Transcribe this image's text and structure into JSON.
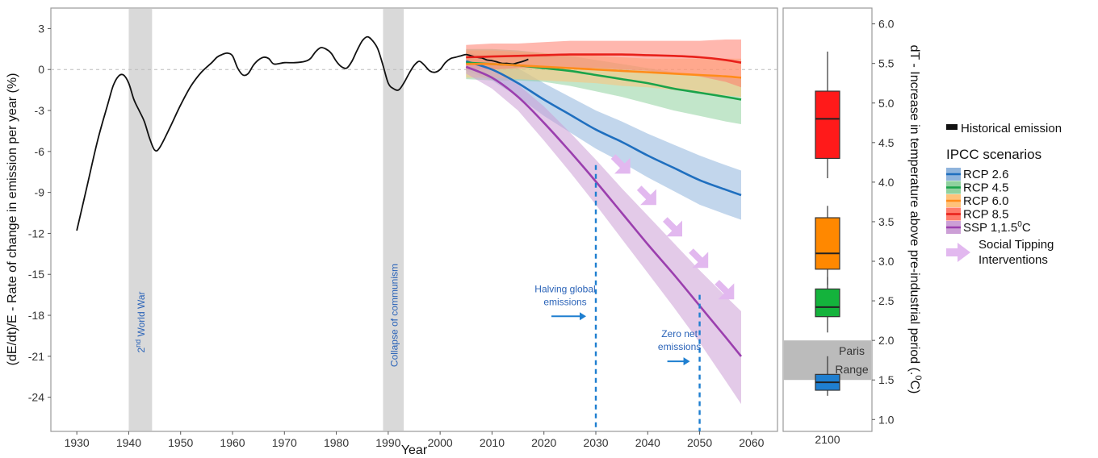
{
  "chart_data": [
    {
      "type": "line",
      "xlabel": "Year",
      "ylabel": "(dE/dt)/E - Rate of change in emission per year (%)",
      "xlim": [
        1925,
        2065
      ],
      "ylim": [
        -26.5,
        4.5
      ],
      "x_ticks": [
        "1930",
        "1940",
        "1950",
        "1960",
        "1970",
        "1980",
        "1990",
        "2000",
        "2010",
        "2020",
        "2030",
        "2040",
        "2050",
        "2060"
      ],
      "y_ticks": [
        "3",
        "0",
        "-3",
        "-6",
        "-9",
        "-12",
        "-15",
        "-18",
        "-21",
        "-24"
      ],
      "grid": false,
      "zero_line": true,
      "shaded_periods": [
        {
          "x_from": 1940,
          "x_to": 1944.5,
          "label": "2nd World War",
          "label_base": "2",
          "label_sup": "nd",
          "label_rest": " World War"
        },
        {
          "x_from": 1989,
          "x_to": 1993,
          "label": "Collapse of communism"
        }
      ],
      "series": [
        {
          "name": "Historical emission",
          "color": "#111111",
          "x": [
            1930,
            1932,
            1934,
            1936,
            1937,
            1938,
            1939,
            1940,
            1941,
            1942,
            1943,
            1944,
            1945,
            1946,
            1948,
            1950,
            1952,
            1954,
            1956,
            1957,
            1958,
            1959,
            1960,
            1961,
            1962,
            1963,
            1964,
            1965,
            1966,
            1967,
            1968,
            1970,
            1972,
            1974,
            1975,
            1976,
            1977,
            1978,
            1979,
            1980,
            1981,
            1982,
            1983,
            1984,
            1985,
            1986,
            1987,
            1988,
            1989,
            1990,
            1991,
            1992,
            1993,
            1994,
            1995,
            1996,
            1997,
            1998,
            1999,
            2000,
            2001,
            2002,
            2003,
            2004,
            2005,
            2006,
            2007,
            2008,
            2009,
            2010,
            2011,
            2012,
            2013,
            2014,
            2015,
            2016,
            2017
          ],
          "y": [
            -11.8,
            -8.5,
            -5.2,
            -2.5,
            -1.2,
            -0.5,
            -0.4,
            -1.0,
            -2.2,
            -3.0,
            -3.8,
            -5.0,
            -5.9,
            -5.7,
            -4.2,
            -2.6,
            -1.2,
            -0.2,
            0.5,
            0.9,
            1.1,
            1.2,
            1.0,
            0.1,
            -0.4,
            -0.3,
            0.3,
            0.7,
            0.9,
            0.8,
            0.4,
            0.5,
            0.5,
            0.6,
            0.8,
            1.3,
            1.6,
            1.5,
            1.2,
            0.6,
            0.2,
            0.1,
            0.6,
            1.4,
            2.1,
            2.4,
            2.1,
            1.5,
            0.3,
            -1.0,
            -1.4,
            -1.5,
            -1.0,
            -0.3,
            0.3,
            0.6,
            0.3,
            -0.1,
            -0.2,
            0.0,
            0.5,
            0.8,
            0.9,
            1.0,
            1.1,
            1.0,
            0.9,
            0.85,
            0.7,
            0.65,
            0.55,
            0.45,
            0.45,
            0.4,
            0.5,
            0.6,
            0.75
          ]
        },
        {
          "name": "RCP 2.6",
          "color": "#1f6fbf",
          "band_color": "#8fb4dc",
          "x": [
            2005,
            2010,
            2015,
            2020,
            2025,
            2030,
            2035,
            2040,
            2045,
            2050,
            2055,
            2058
          ],
          "y": [
            0.6,
            0.0,
            -1.0,
            -2.2,
            -3.3,
            -4.4,
            -5.3,
            -6.3,
            -7.2,
            -8.1,
            -8.8,
            -9.2
          ],
          "upper": [
            1.3,
            0.8,
            0.1,
            -1.0,
            -2.0,
            -3.0,
            -3.8,
            -4.7,
            -5.5,
            -6.3,
            -7.0,
            -7.4
          ],
          "lower": [
            -0.1,
            -0.8,
            -2.0,
            -3.4,
            -4.6,
            -5.8,
            -6.8,
            -7.9,
            -8.9,
            -9.9,
            -10.6,
            -11.0
          ]
        },
        {
          "name": "RCP 4.5",
          "color": "#1aa34a",
          "band_color": "#8fd19e",
          "x": [
            2005,
            2010,
            2015,
            2020,
            2025,
            2030,
            2035,
            2040,
            2045,
            2050,
            2055,
            2058
          ],
          "y": [
            0.5,
            0.4,
            0.3,
            0.1,
            -0.1,
            -0.4,
            -0.7,
            -1.0,
            -1.4,
            -1.7,
            -2.0,
            -2.2
          ],
          "upper": [
            1.5,
            1.5,
            1.4,
            1.2,
            1.0,
            0.7,
            0.4,
            0.1,
            -0.2,
            -0.4,
            -0.6,
            -0.7
          ],
          "lower": [
            -0.7,
            -0.8,
            -0.8,
            -0.9,
            -1.2,
            -1.6,
            -2.0,
            -2.5,
            -3.0,
            -3.4,
            -3.8,
            -4.0
          ]
        },
        {
          "name": "RCP 6.0",
          "color": "#ff8c1a",
          "band_color": "#ffc27a",
          "x": [
            2005,
            2010,
            2015,
            2020,
            2025,
            2030,
            2035,
            2040,
            2045,
            2050,
            2055,
            2058
          ],
          "y": [
            0.4,
            0.4,
            0.3,
            0.2,
            0.1,
            0.0,
            -0.1,
            -0.2,
            -0.3,
            -0.4,
            -0.5,
            -0.6
          ],
          "upper": [
            1.4,
            1.4,
            1.3,
            1.2,
            1.1,
            1.0,
            0.9,
            0.8,
            0.8,
            0.8,
            0.8,
            0.8
          ],
          "lower": [
            -0.6,
            -0.6,
            -0.7,
            -0.8,
            -0.9,
            -1.0,
            -1.2,
            -1.3,
            -1.5,
            -1.7,
            -1.9,
            -2.0
          ]
        },
        {
          "name": "RCP 8.5",
          "color": "#e8201a",
          "band_color": "#ff7b6b",
          "x": [
            2005,
            2010,
            2015,
            2020,
            2025,
            2030,
            2035,
            2040,
            2045,
            2050,
            2055,
            2058
          ],
          "y": [
            0.9,
            0.95,
            1.0,
            1.05,
            1.1,
            1.1,
            1.1,
            1.05,
            1.0,
            0.9,
            0.7,
            0.5
          ],
          "upper": [
            1.8,
            1.9,
            1.9,
            2.0,
            2.1,
            2.1,
            2.1,
            2.1,
            2.1,
            2.1,
            2.2,
            2.2
          ],
          "lower": [
            0.0,
            0.0,
            0.1,
            0.1,
            0.1,
            0.1,
            0.0,
            -0.1,
            -0.3,
            -0.5,
            -0.9,
            -1.3
          ]
        },
        {
          "name": "SSP 1,1.5⁰C",
          "color": "#9b3fae",
          "band_color": "#cc9fd6",
          "x": [
            2005,
            2010,
            2015,
            2020,
            2025,
            2030,
            2035,
            2040,
            2045,
            2050,
            2055,
            2058
          ],
          "y": [
            0.2,
            -0.6,
            -2.0,
            -3.9,
            -6.0,
            -8.2,
            -10.5,
            -12.8,
            -15.0,
            -17.3,
            -19.6,
            -21.0
          ],
          "upper": [
            0.6,
            0.0,
            -1.1,
            -2.7,
            -4.6,
            -6.6,
            -8.7,
            -10.7,
            -12.7,
            -14.7,
            -16.6,
            -17.7
          ],
          "lower": [
            -0.3,
            -1.4,
            -3.0,
            -5.2,
            -7.5,
            -9.9,
            -12.4,
            -14.9,
            -17.4,
            -20.0,
            -22.8,
            -24.5
          ]
        }
      ],
      "arrows": {
        "name": "Social Tipping Interventions",
        "color": "#e2b8ef",
        "points": [
          {
            "x": 2035,
            "y": -7.0
          },
          {
            "x": 2040,
            "y": -9.3
          },
          {
            "x": 2045,
            "y": -11.6
          },
          {
            "x": 2050,
            "y": -13.9
          },
          {
            "x": 2055,
            "y": -16.2
          }
        ]
      },
      "vertical_markers": [
        {
          "x": 2030,
          "y_top": -7.0,
          "label": [
            "Halving global",
            "emissions"
          ]
        },
        {
          "x": 2050,
          "y_top": -16.5,
          "label": [
            "Zero net",
            "emissions"
          ]
        }
      ]
    },
    {
      "type": "box",
      "category": "2100",
      "ylabel": "dT - Increase in temperature above pre-industrial period (°C)",
      "ylabel_parts": [
        "dT - Increase in temperature above pre-industrial period (.",
        "0",
        "C)"
      ],
      "ylim": [
        0.85,
        6.2
      ],
      "y_ticks": [
        "1.0",
        "1.5",
        "2.0",
        "2.5",
        "3.0",
        "3.5",
        "4.0",
        "4.5",
        "5.0",
        "5.5",
        "6.0"
      ],
      "paris_range": {
        "from": 1.5,
        "to": 2.0,
        "label": [
          "Paris",
          "Range"
        ],
        "color": "#bbbbbb"
      },
      "boxes": [
        {
          "name": "RCP 8.5",
          "color": "#ff1a1a",
          "whisker_low": 4.05,
          "q1": 4.3,
          "median": 4.8,
          "q3": 5.15,
          "whisker_high": 5.65
        },
        {
          "name": "RCP 6.0",
          "color": "#ff8800",
          "whisker_low": 2.7,
          "q1": 2.9,
          "median": 3.1,
          "q3": 3.55,
          "whisker_high": 3.7
        },
        {
          "name": "RCP 4.5",
          "color": "#14b33c",
          "whisker_low": 2.1,
          "q1": 2.3,
          "median": 2.42,
          "q3": 2.65,
          "whisker_high": 2.8
        },
        {
          "name": "RCP 2.6",
          "color": "#1f7fd0",
          "whisker_low": 1.3,
          "q1": 1.37,
          "median": 1.47,
          "q3": 1.57,
          "whisker_high": 1.8
        }
      ]
    }
  ],
  "legend": {
    "historical_label": "Historical emission",
    "scenarios_title": "IPCC scenarios",
    "items": [
      {
        "label": "RCP 2.6",
        "line": "#1f6fbf",
        "fill": "#8fb4dc"
      },
      {
        "label": "RCP 4.5",
        "line": "#1aa34a",
        "fill": "#8fd19e"
      },
      {
        "label": "RCP 6.0",
        "line": "#ff8c1a",
        "fill": "#ffc27a"
      },
      {
        "label": "RCP 8.5",
        "line": "#e8201a",
        "fill": "#ff7b6b"
      },
      {
        "label": "SSP 1,1.5",
        "label_sup": "0",
        "label_tail": "C",
        "line": "#9b3fae",
        "fill": "#cc9fd6"
      }
    ],
    "tipping_label": [
      "Social Tipping",
      "Interventions"
    ]
  }
}
